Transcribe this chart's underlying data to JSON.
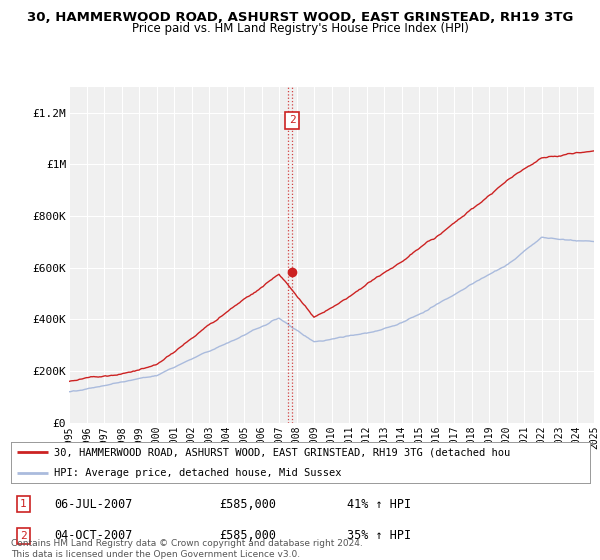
{
  "title": "30, HAMMERWOOD ROAD, ASHURST WOOD, EAST GRINSTEAD, RH19 3TG",
  "subtitle": "Price paid vs. HM Land Registry's House Price Index (HPI)",
  "ylim": [
    0,
    1300000
  ],
  "yticks": [
    0,
    200000,
    400000,
    600000,
    800000,
    1000000,
    1200000
  ],
  "ytick_labels": [
    "£0",
    "£200K",
    "£400K",
    "£600K",
    "£800K",
    "£1M",
    "£1.2M"
  ],
  "hpi_color": "#aabbdd",
  "price_color": "#cc2222",
  "marker_color": "#cc2222",
  "vline_color": "#cc2222",
  "box_color": "#cc2222",
  "background_color": "#f0f0f0",
  "grid_color": "#ffffff",
  "transaction1": {
    "date": "06-JUL-2007",
    "price": 585000,
    "pct": "41%",
    "label": "1"
  },
  "transaction2": {
    "date": "04-OCT-2007",
    "price": 585000,
    "pct": "35%",
    "label": "2"
  },
  "legend_red_label": "30, HAMMERWOOD ROAD, ASHURST WOOD, EAST GRINSTEAD, RH19 3TG (detached hou",
  "legend_blue_label": "HPI: Average price, detached house, Mid Sussex",
  "footer": "Contains HM Land Registry data © Crown copyright and database right 2024.\nThis data is licensed under the Open Government Licence v3.0.",
  "xstart_year": 1995,
  "xend_year": 2025
}
